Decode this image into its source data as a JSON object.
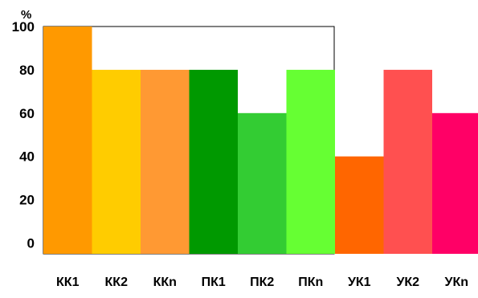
{
  "chart_data": {
    "type": "bar",
    "y_unit_label": "%",
    "categories": [
      "КК1",
      "КК2",
      "ККn",
      "ПК1",
      "ПК2",
      "ПКn",
      "УК1",
      "УК2",
      "УКn"
    ],
    "values": [
      100,
      80,
      80,
      80,
      60,
      80,
      40,
      80,
      60
    ],
    "colors": [
      "#FF9900",
      "#FFCC00",
      "#FF9933",
      "#009900",
      "#33CC33",
      "#66FF33",
      "#FF6600",
      "#FF5050",
      "#FF0066"
    ],
    "y_ticks": [
      "0",
      "20",
      "40",
      "60",
      "80",
      "100"
    ],
    "ylim": [
      -5,
      100
    ],
    "grid": false,
    "legend": "none"
  }
}
